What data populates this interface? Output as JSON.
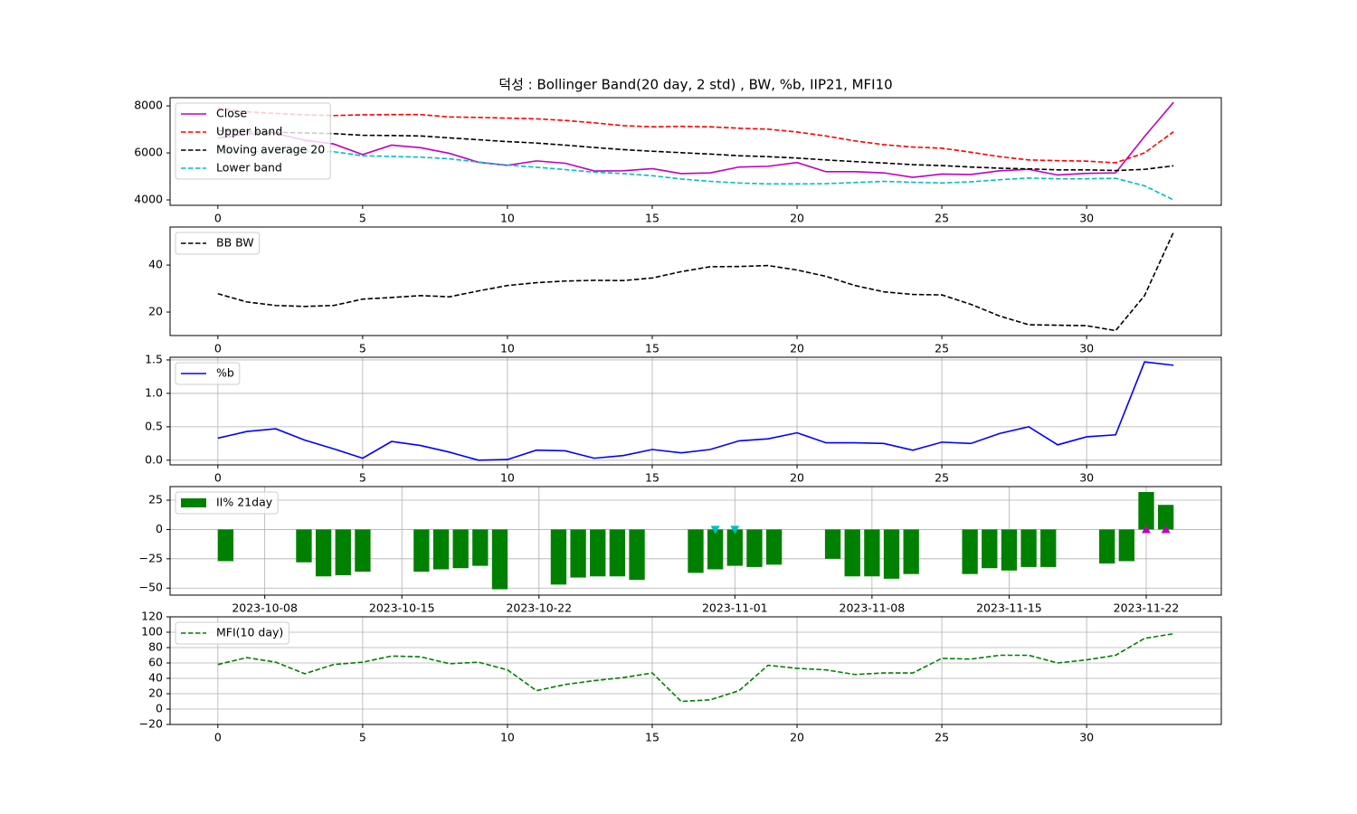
{
  "chart_data": [
    {
      "type": "line",
      "title": "덕성 : Bollinger Band(20 day, 2 std) , BW, %b, IIP21, MFI10",
      "x": [
        0,
        1,
        2,
        3,
        4,
        5,
        6,
        7,
        8,
        9,
        10,
        11,
        12,
        13,
        14,
        15,
        16,
        17,
        18,
        19,
        20,
        21,
        22,
        23,
        24,
        25,
        26,
        27,
        28,
        29,
        30,
        31,
        32,
        33
      ],
      "xlim": [
        -1.65,
        34.65
      ],
      "xticks": [
        0,
        5,
        10,
        15,
        20,
        25,
        30
      ],
      "ylim": [
        3770,
        8350
      ],
      "yticks": [
        4000,
        6000,
        8000
      ],
      "grid": false,
      "legend": "upper-left",
      "series": [
        {
          "name": "Close",
          "color": "#bf00bf",
          "style": "solid",
          "values": [
            6630,
            6810,
            6830,
            6540,
            6380,
            5930,
            6330,
            6220,
            5980,
            5600,
            5470,
            5660,
            5560,
            5230,
            5240,
            5330,
            5120,
            5150,
            5400,
            5430,
            5590,
            5200,
            5200,
            5150,
            4960,
            5100,
            5080,
            5240,
            5300,
            5060,
            5130,
            5150,
            6700,
            8150
          ]
        },
        {
          "name": "Upper band",
          "color": "#ff0000",
          "style": "dashed",
          "values": [
            7900,
            7750,
            7680,
            7620,
            7590,
            7620,
            7630,
            7630,
            7530,
            7510,
            7480,
            7450,
            7380,
            7280,
            7160,
            7110,
            7130,
            7110,
            7050,
            7010,
            6890,
            6720,
            6510,
            6350,
            6250,
            6200,
            6030,
            5840,
            5700,
            5670,
            5650,
            5580,
            6000,
            6900
          ]
        },
        {
          "name": "Moving average 20",
          "color": "#000000",
          "style": "dashed",
          "values": [
            6950,
            6900,
            6880,
            6850,
            6820,
            6750,
            6740,
            6720,
            6640,
            6560,
            6480,
            6420,
            6330,
            6230,
            6140,
            6070,
            6010,
            5950,
            5880,
            5840,
            5780,
            5700,
            5630,
            5570,
            5500,
            5460,
            5400,
            5350,
            5320,
            5280,
            5280,
            5250,
            5300,
            5450
          ]
        },
        {
          "name": "Lower band",
          "color": "#00bfbf",
          "style": "dashed",
          "values": [
            6000,
            6050,
            6080,
            6080,
            6050,
            5880,
            5850,
            5820,
            5750,
            5610,
            5480,
            5390,
            5290,
            5180,
            5120,
            5030,
            4890,
            4790,
            4720,
            4680,
            4680,
            4690,
            4740,
            4790,
            4750,
            4720,
            4770,
            4860,
            4930,
            4900,
            4900,
            4920,
            4600,
            4000
          ]
        }
      ]
    },
    {
      "type": "line",
      "x": [
        0,
        1,
        2,
        3,
        4,
        5,
        6,
        7,
        8,
        9,
        10,
        11,
        12,
        13,
        14,
        15,
        16,
        17,
        18,
        19,
        20,
        21,
        22,
        23,
        24,
        25,
        26,
        27,
        28,
        29,
        30,
        31,
        32,
        33
      ],
      "xlim": [
        -1.65,
        34.65
      ],
      "xticks": [
        0,
        5,
        10,
        15,
        20,
        25,
        30
      ],
      "ylim": [
        10,
        56.2
      ],
      "yticks": [
        20,
        40
      ],
      "grid": false,
      "legend": "upper-left",
      "series": [
        {
          "name": "BB BW",
          "color": "#000000",
          "style": "dashed",
          "values": [
            27.8,
            24.3,
            22.8,
            22.4,
            22.8,
            25.5,
            26.2,
            27,
            26.5,
            29,
            31.3,
            32.5,
            33.2,
            33.5,
            33.4,
            34.5,
            37.2,
            39.3,
            39.4,
            39.8,
            37.9,
            35.2,
            31.3,
            28.6,
            27.5,
            27.3,
            23.3,
            18.3,
            14.6,
            14.4,
            14.2,
            12.1,
            27,
            54
          ]
        }
      ]
    },
    {
      "type": "line",
      "x": [
        0,
        1,
        2,
        3,
        4,
        5,
        6,
        7,
        8,
        9,
        10,
        11,
        12,
        13,
        14,
        15,
        16,
        17,
        18,
        19,
        20,
        21,
        22,
        23,
        24,
        25,
        26,
        27,
        28,
        29,
        30,
        31,
        32,
        33
      ],
      "xlim": [
        -1.65,
        34.65
      ],
      "xticks": [
        0,
        5,
        10,
        15,
        20,
        25,
        30
      ],
      "ylim": [
        -0.07,
        1.54
      ],
      "yticks": [
        {
          "value": 0,
          "label": "0.0"
        },
        0.5,
        {
          "value": 1,
          "label": "1.0"
        },
        1.5
      ],
      "grid": true,
      "legend": "upper-left",
      "series": [
        {
          "name": "%b",
          "color": "#0000ff",
          "style": "solid",
          "values": [
            0.33,
            0.43,
            0.47,
            0.3,
            0.17,
            0.03,
            0.28,
            0.22,
            0.12,
            0.0,
            0.01,
            0.15,
            0.14,
            0.03,
            0.07,
            0.16,
            0.11,
            0.16,
            0.29,
            0.32,
            0.41,
            0.26,
            0.26,
            0.25,
            0.15,
            0.27,
            0.25,
            0.4,
            0.5,
            0.23,
            0.35,
            0.38,
            1.47,
            1.42
          ]
        }
      ]
    },
    {
      "type": "bar",
      "x_scale": "date",
      "x": [
        "2023-10-06",
        "2023-10-10",
        "2023-10-11",
        "2023-10-12",
        "2023-10-13",
        "2023-10-16",
        "2023-10-17",
        "2023-10-18",
        "2023-10-19",
        "2023-10-20",
        "2023-10-23",
        "2023-10-24",
        "2023-10-25",
        "2023-10-26",
        "2023-10-27",
        "2023-10-30",
        "2023-10-31",
        "2023-11-01",
        "2023-11-02",
        "2023-11-03",
        "2023-11-06",
        "2023-11-07",
        "2023-11-08",
        "2023-11-09",
        "2023-11-10",
        "2023-11-13",
        "2023-11-14",
        "2023-11-15",
        "2023-11-16",
        "2023-11-17",
        "2023-11-20",
        "2023-11-21",
        "2023-11-22",
        "2023-11-23"
      ],
      "xlim": [
        "2023-10-03T04:00",
        "2023-11-25T20:00"
      ],
      "xticks": [
        "2023-10-08",
        "2023-10-15",
        "2023-10-22",
        "2023-11-01",
        "2023-11-08",
        "2023-11-15",
        "2023-11-22"
      ],
      "ylim": [
        -56,
        36.6
      ],
      "yticks": [
        {
          "value": -50,
          "label": "−50"
        },
        {
          "value": -25,
          "label": "−25"
        },
        0,
        25
      ],
      "grid": true,
      "legend": "upper-left",
      "series": [
        {
          "name": "II% 21day",
          "color": "#008000",
          "values": [
            -27,
            -28,
            -40,
            -39,
            -36,
            -36,
            -34,
            -33,
            -31,
            -51,
            -47,
            -41,
            -40,
            -40,
            -43,
            -37,
            -34,
            -31,
            -32,
            -30,
            -25,
            -40,
            -40,
            -42,
            -38,
            -38,
            -33,
            -35,
            -32,
            -32,
            -29,
            -27,
            32,
            21
          ]
        }
      ],
      "markers": [
        {
          "shape": "down",
          "color": "#00bfbf",
          "x": [
            "2023-10-31",
            "2023-11-01"
          ],
          "values": [
            0,
            0
          ]
        },
        {
          "shape": "up",
          "color": "#bf00bf",
          "x": [
            "2023-11-22",
            "2023-11-23"
          ],
          "values": [
            0,
            0
          ]
        }
      ]
    },
    {
      "type": "line",
      "x": [
        0,
        1,
        2,
        3,
        4,
        5,
        6,
        7,
        8,
        9,
        10,
        11,
        12,
        13,
        14,
        15,
        16,
        17,
        18,
        19,
        20,
        21,
        22,
        23,
        24,
        25,
        26,
        27,
        28,
        29,
        30,
        31,
        32,
        33
      ],
      "xlim": [
        -1.65,
        34.65
      ],
      "xticks": [
        0,
        5,
        10,
        15,
        20,
        25,
        30
      ],
      "ylim": [
        -20,
        120
      ],
      "yticks": [
        {
          "value": -20,
          "label": "−20"
        },
        0,
        20,
        40,
        60,
        80,
        100,
        120
      ],
      "grid": true,
      "legend": "upper-left",
      "series": [
        {
          "name": "MFI(10 day)",
          "color": "#008000",
          "style": "dashed",
          "values": [
            58,
            67,
            61,
            46,
            58,
            61,
            69,
            68,
            59,
            61,
            51,
            24,
            32,
            37,
            41,
            47,
            10,
            12,
            24,
            57,
            53,
            51,
            45,
            47,
            47,
            66,
            65,
            70,
            70,
            60,
            64,
            70,
            92,
            98
          ]
        }
      ]
    }
  ]
}
